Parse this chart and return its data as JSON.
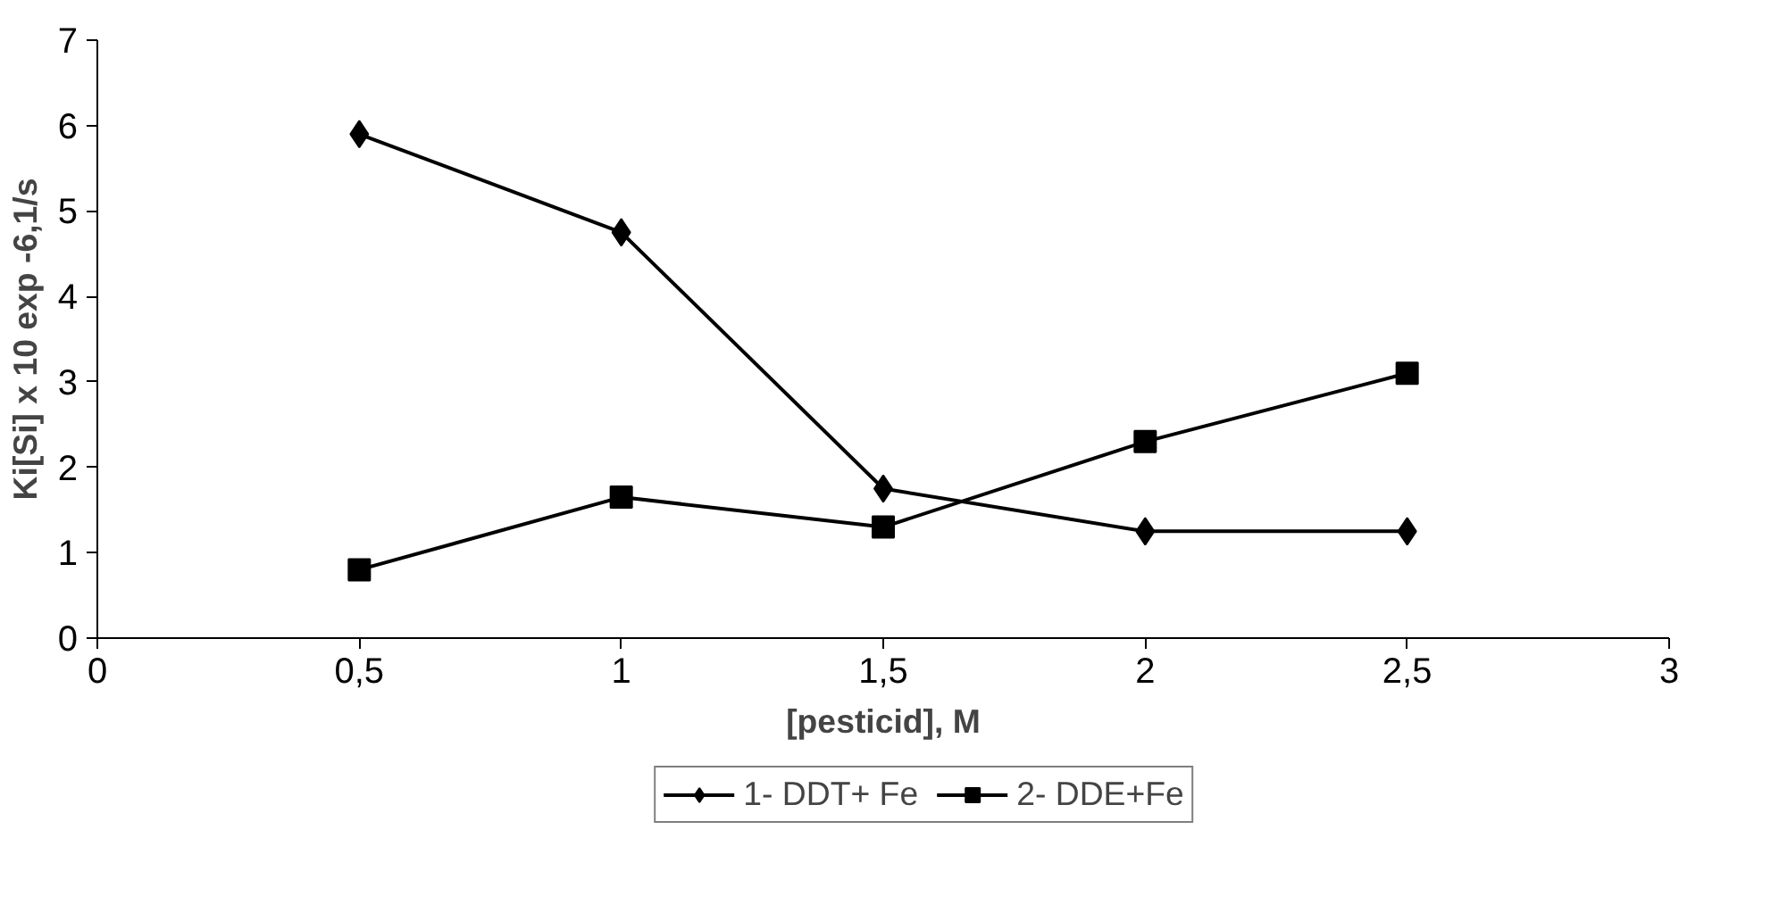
{
  "chart_data": {
    "type": "line",
    "xlabel": "[pesticid], M",
    "ylabel": "Ki[Si] x 10 exp -6,1/s",
    "x": [
      0.5,
      1,
      1.5,
      2,
      2.5
    ],
    "series": [
      {
        "name": "1- DDT+ Fe",
        "color": "#000000",
        "marker": "diamond",
        "values": [
          5.9,
          4.75,
          1.75,
          1.25,
          1.25
        ]
      },
      {
        "name": "2- DDE+Fe",
        "color": "#000000",
        "marker": "square",
        "values": [
          0.8,
          1.65,
          1.3,
          2.3,
          3.1
        ]
      }
    ],
    "xlim": [
      0,
      3
    ],
    "ylim": [
      0,
      7
    ],
    "xticks": [
      0,
      {
        "value": 0.5,
        "label": "0,5"
      },
      1,
      {
        "value": 1.5,
        "label": "1,5"
      },
      2,
      {
        "value": 2.5,
        "label": "2,5"
      },
      3
    ],
    "yticks": [
      0,
      1,
      2,
      3,
      4,
      5,
      6,
      7
    ],
    "grid": false,
    "legend": "bottom",
    "line_style": "solid"
  }
}
